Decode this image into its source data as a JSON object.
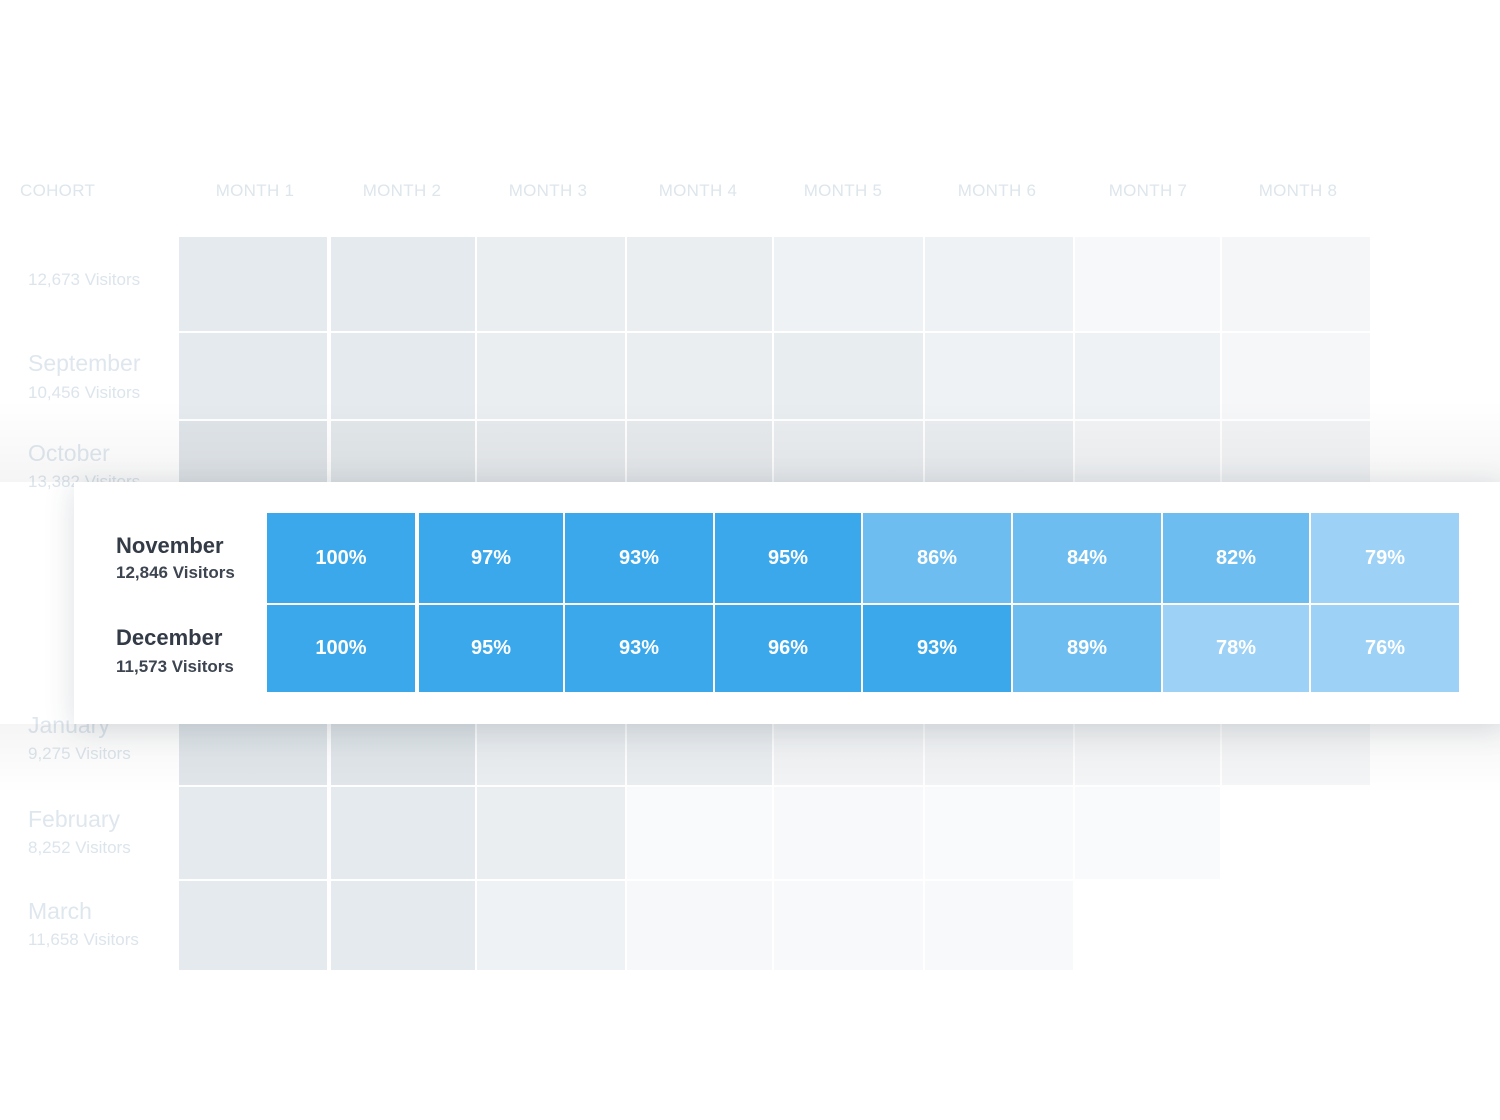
{
  "chart_data": {
    "type": "heatmap",
    "columns": [
      "COHORT",
      "MONTH 1",
      "MONTH 2",
      "MONTH 3",
      "MONTH 4",
      "MONTH 5",
      "MONTH 6",
      "MONTH 7",
      "MONTH 8"
    ],
    "background_rows": [
      {
        "name": "",
        "visitors": "12,673 Visitors",
        "months": 8
      },
      {
        "name": "September",
        "visitors": "10,456 Visitors",
        "months": 8
      },
      {
        "name": "October",
        "visitors": "13,382 Visitors",
        "months": 8
      },
      {
        "name": "January",
        "visitors": "9,275 Visitors",
        "months": 8
      },
      {
        "name": "February",
        "visitors": "8,252 Visitors",
        "months": 7
      },
      {
        "name": "March",
        "visitors": "11,658 Visitors",
        "months": 6
      }
    ],
    "rows": [
      {
        "name": "November",
        "visitors": "12,846 Visitors",
        "values": [
          100,
          97,
          93,
          95,
          86,
          84,
          82,
          79
        ],
        "labels": [
          "100%",
          "97%",
          "93%",
          "95%",
          "86%",
          "84%",
          "82%",
          "79%"
        ]
      },
      {
        "name": "December",
        "visitors": "11,573 Visitors",
        "values": [
          100,
          95,
          93,
          96,
          93,
          89,
          78,
          76
        ],
        "labels": [
          "100%",
          "95%",
          "93%",
          "96%",
          "93%",
          "89%",
          "78%",
          "76%"
        ]
      }
    ],
    "colors": {
      "high": "#3ba8eb",
      "mid": "#6dbdf1",
      "low": "#9dd1f5"
    }
  }
}
